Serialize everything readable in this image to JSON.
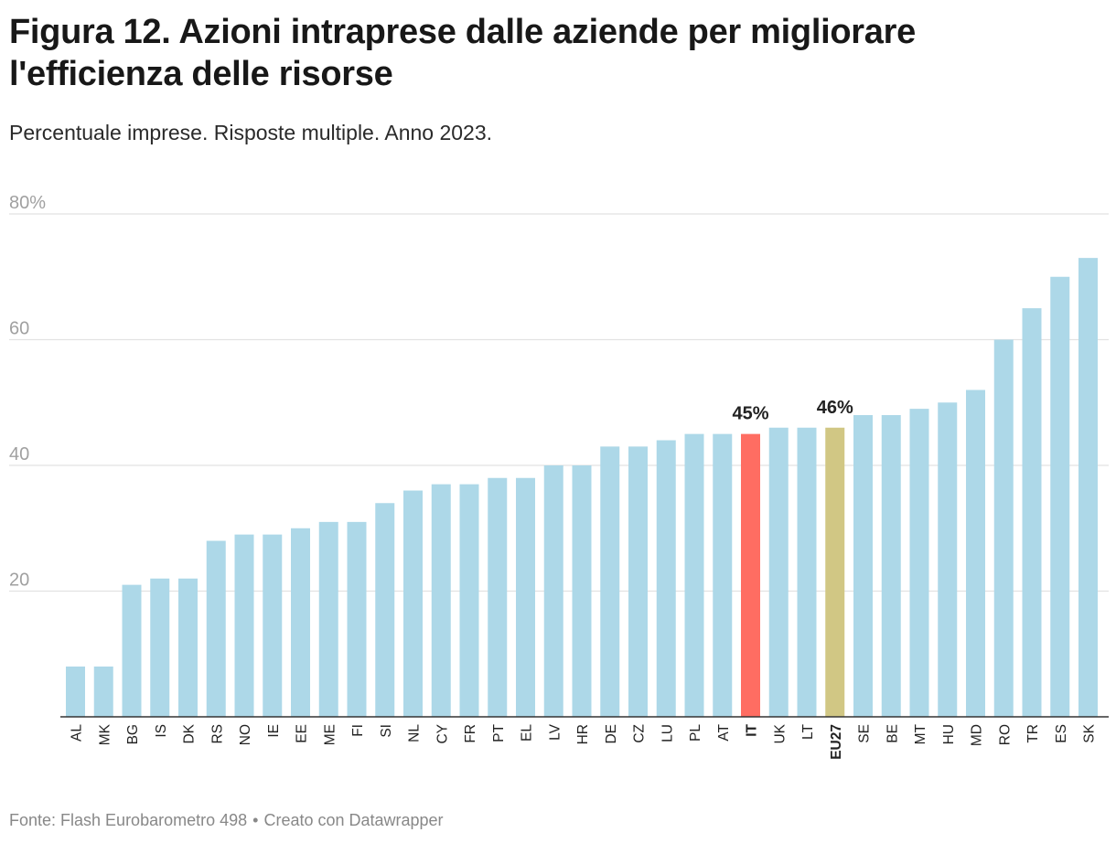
{
  "header": {
    "title": "Figura 12. Azioni intraprese dalle aziende per migliorare l'efficienza delle risorse",
    "subtitle": "Percentuale imprese. Risposte multiple. Anno 2023."
  },
  "footer": {
    "source": "Fonte: Flash Eurobarometro 498",
    "separator": "•",
    "credit": "Creato con Datawrapper"
  },
  "colors": {
    "default_bar": "#add8e8",
    "highlight_it": "#ff6d62",
    "highlight_eu": "#d1c784",
    "grid": "#e2e2e2",
    "axis": "#333333",
    "tick_text": "#a0a0a0",
    "label_text": "#222222"
  },
  "chart_data": {
    "type": "bar",
    "title": "Figura 12. Azioni intraprese dalle aziende per migliorare l'efficienza delle risorse",
    "subtitle": "Percentuale imprese. Risposte multiple. Anno 2023.",
    "xlabel": "",
    "ylabel": "",
    "ylim": [
      0,
      80
    ],
    "yticks": [
      {
        "value": 20,
        "label": "20"
      },
      {
        "value": 40,
        "label": "40"
      },
      {
        "value": 60,
        "label": "60"
      },
      {
        "value": 80,
        "label": "80%"
      }
    ],
    "grid": true,
    "categories": [
      "AL",
      "MK",
      "BG",
      "IS",
      "DK",
      "RS",
      "NO",
      "IE",
      "EE",
      "ME",
      "FI",
      "SI",
      "NL",
      "CY",
      "FR",
      "PT",
      "EL",
      "LV",
      "HR",
      "DE",
      "CZ",
      "LU",
      "PL",
      "AT",
      "IT",
      "UK",
      "LT",
      "EU27",
      "SE",
      "BE",
      "MT",
      "HU",
      "MD",
      "RO",
      "TR",
      "ES",
      "SK"
    ],
    "values": [
      8,
      8,
      21,
      22,
      22,
      28,
      29,
      29,
      30,
      31,
      31,
      34,
      36,
      37,
      37,
      38,
      38,
      40,
      40,
      43,
      43,
      44,
      45,
      45,
      45,
      46,
      46,
      46,
      48,
      48,
      49,
      50,
      52,
      60,
      65,
      70,
      73
    ],
    "highlights": [
      {
        "category": "IT",
        "color_key": "highlight_it",
        "label": "45%",
        "bold": true
      },
      {
        "category": "EU27",
        "color_key": "highlight_eu",
        "label": "46%",
        "bold": true
      }
    ]
  }
}
